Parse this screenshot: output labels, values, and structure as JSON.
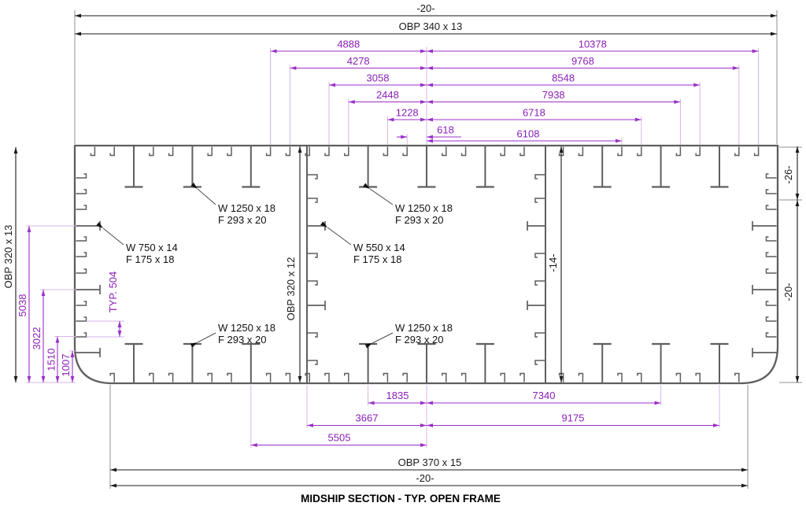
{
  "title": "MIDSHIP SECTION - TYP. OPEN FRAME",
  "colors": {
    "structure": "#5f5f5f",
    "dim_black": "#1a1a1a",
    "ext_gray": "#8f8f8f",
    "dim_purple": "#9a30c8",
    "dim_purple_text": "#8a1fb8",
    "ext_purple": "#d9b4ec",
    "leader": "#4a4a4a"
  },
  "plate_labels": {
    "deck_thickness": "-20-",
    "deck_profile": "OBP 340 x 13",
    "bottom_profile": "OBP 370 x 15",
    "bottom_thickness": "-20-",
    "side_left_profile": "OBP 320 x 13",
    "bulkhead1_profile": "OBP 320 x 12",
    "bulkhead2_thickness": "-14-",
    "sheer_thickness": "-26-",
    "side_right_thickness": "-20-"
  },
  "member_labels": {
    "deck_girder": [
      "W 1250 x 18",
      "F 293 x 20"
    ],
    "side_frame": [
      "W 750 x 14",
      "F 175 x 18"
    ],
    "bulkhead_frame": [
      "W 550 x 14",
      "F 175 x 18"
    ],
    "bottom_girder": [
      "W 1250 x 18",
      "F 293 x 20"
    ]
  },
  "dims": {
    "top_left": [
      "4888",
      "4278",
      "3058",
      "2448",
      "1228",
      "618"
    ],
    "top_right": [
      "10378",
      "9768",
      "8548",
      "7938",
      "6718",
      "6108"
    ],
    "bottom_left": [
      "1835",
      "3667",
      "5505"
    ],
    "bottom_right": [
      "7340",
      "9175"
    ],
    "side_left": [
      "5038",
      "3022",
      "1510",
      "1007"
    ],
    "typical_spacing": "TYP. 504"
  }
}
